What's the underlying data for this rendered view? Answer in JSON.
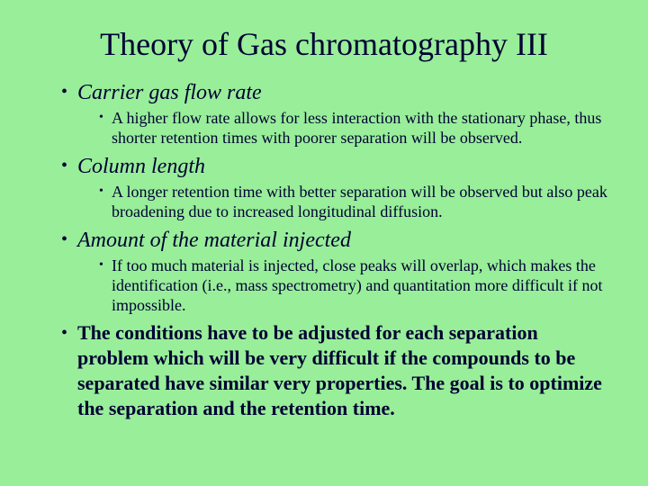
{
  "colors": {
    "background": "#99ee99",
    "text": "#000033"
  },
  "typography": {
    "title_fontsize": 36,
    "level1_fontsize": 24,
    "level2_fontsize": 18,
    "summary_fontsize": 22,
    "font_family": "Times New Roman"
  },
  "title": "Theory of Gas chromatography III",
  "points": {
    "p1": {
      "head": "Carrier gas flow rate",
      "sub": "A higher flow rate allows for less interaction with the stationary phase, thus shorter retention times with poorer separation will be observed."
    },
    "p2": {
      "head": "Column length",
      "sub": "A longer retention time with better separation will be observed but also peak broadening due to increased longitudinal diffusion."
    },
    "p3": {
      "head": "Amount of the material injected",
      "sub": "If too much material is injected, close peaks will overlap, which makes the identification (i.e., mass spectrometry) and quantitation more difficult if not impossible."
    },
    "summary": "The conditions have to be adjusted for each separation problem which will be very difficult if the compounds to be separated have similar very properties. The goal is to optimize the separation and the retention time."
  }
}
